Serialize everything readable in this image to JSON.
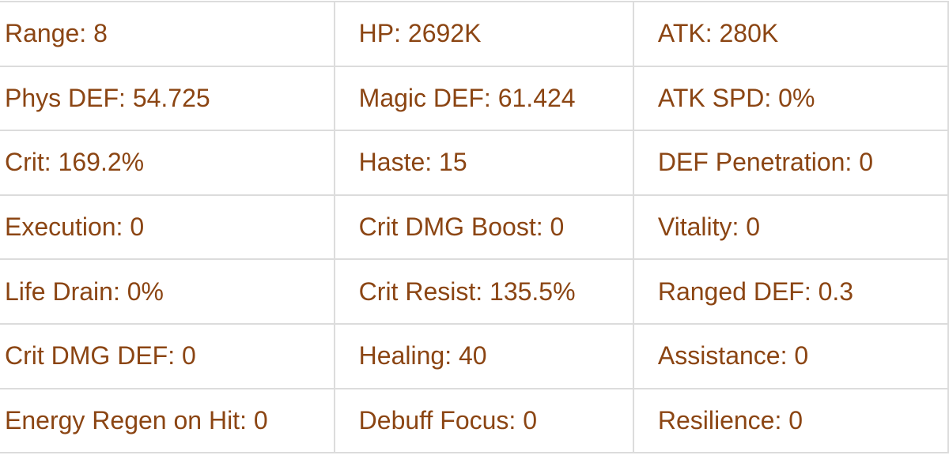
{
  "text_color": "#8b4513",
  "rows": [
    [
      "Range: 8",
      "HP: 2692K",
      "ATK: 280K"
    ],
    [
      "Phys DEF: 54.725",
      "Magic DEF: 61.424",
      "ATK SPD: 0%"
    ],
    [
      "Crit: 169.2%",
      "Haste: 15",
      "DEF Penetration: 0"
    ],
    [
      "Execution: 0",
      "Crit DMG Boost: 0",
      "Vitality: 0"
    ],
    [
      "Life Drain: 0%",
      "Crit Resist: 135.5%",
      "Ranged DEF: 0.3"
    ],
    [
      "Crit DMG DEF: 0",
      "Healing: 40",
      "Assistance: 0"
    ],
    [
      "Energy Regen on Hit: 0",
      "Debuff Focus: 0",
      "Resilience: 0"
    ]
  ]
}
